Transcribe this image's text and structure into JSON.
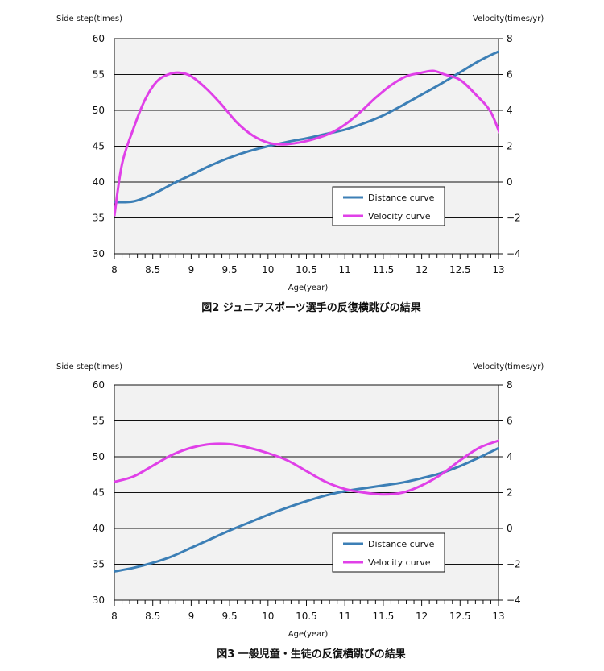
{
  "chart_data": [
    {
      "type": "line",
      "caption": "図2 ジュニアスポーツ選手の反復横跳びの結果",
      "xlabel": "Age(year)",
      "ylabel_left": "Side step(times)",
      "ylabel_right": "Velocity(times/yr)",
      "xlim": [
        8,
        13
      ],
      "x_ticks": [
        "8",
        "8.5",
        "9",
        "9.5",
        "10",
        "10.5",
        "11",
        "11.5",
        "12",
        "12.5",
        "13"
      ],
      "ylim_left": [
        30,
        60
      ],
      "y_ticks_left": [
        "30",
        "35",
        "40",
        "45",
        "50",
        "55",
        "60"
      ],
      "ylim_right": [
        -4,
        8
      ],
      "y_ticks_right": [
        "−4",
        "−2",
        "0",
        "2",
        "4",
        "6",
        "8"
      ],
      "legend": {
        "placement": "lower-right",
        "entries": [
          "Distance curve",
          "Velocity curve"
        ]
      },
      "series": [
        {
          "name": "Distance curve",
          "axis": "left",
          "color": "#3c7fb6",
          "x": [
            8.0,
            8.25,
            8.5,
            8.75,
            9.0,
            9.25,
            9.5,
            9.75,
            10.0,
            10.25,
            10.5,
            10.75,
            11.0,
            11.25,
            11.5,
            11.75,
            12.0,
            12.25,
            12.5,
            12.75,
            13.0,
            13.05
          ],
          "y": [
            37.2,
            37.3,
            38.3,
            39.7,
            41.0,
            42.3,
            43.4,
            44.3,
            45.0,
            45.6,
            46.1,
            46.7,
            47.3,
            48.2,
            49.3,
            50.7,
            52.2,
            53.7,
            55.3,
            56.9,
            58.2,
            58.3
          ]
        },
        {
          "name": "Velocity curve",
          "axis": "right",
          "color": "#e040e8",
          "x": [
            8.0,
            8.1,
            8.25,
            8.4,
            8.55,
            8.7,
            8.85,
            9.0,
            9.2,
            9.4,
            9.6,
            9.8,
            10.0,
            10.2,
            10.4,
            10.6,
            10.8,
            11.0,
            11.2,
            11.4,
            11.6,
            11.8,
            12.0,
            12.15,
            12.3,
            12.5,
            12.7,
            12.9,
            13.05
          ],
          "y": [
            -1.9,
            1.0,
            3.0,
            4.6,
            5.6,
            6.0,
            6.1,
            5.9,
            5.2,
            4.3,
            3.3,
            2.6,
            2.2,
            2.1,
            2.2,
            2.4,
            2.7,
            3.2,
            3.9,
            4.7,
            5.4,
            5.9,
            6.1,
            6.2,
            6.0,
            5.7,
            4.9,
            3.9,
            2.3
          ]
        }
      ]
    },
    {
      "type": "line",
      "caption": "図3 一般児童・生徒の反復横跳びの結果",
      "xlabel": "Age(year)",
      "ylabel_left": "Side step(times)",
      "ylabel_right": "Velocity(times/yr)",
      "xlim": [
        8,
        13
      ],
      "x_ticks": [
        "8",
        "8.5",
        "9",
        "9.5",
        "10",
        "10.5",
        "11",
        "11.5",
        "12",
        "12.5",
        "13"
      ],
      "ylim_left": [
        30,
        60
      ],
      "y_ticks_left": [
        "30",
        "35",
        "40",
        "45",
        "50",
        "55",
        "60"
      ],
      "ylim_right": [
        -4,
        8
      ],
      "y_ticks_right": [
        "−4",
        "−2",
        "0",
        "2",
        "4",
        "6",
        "8"
      ],
      "legend": {
        "placement": "lower-right",
        "entries": [
          "Distance curve",
          "Velocity curve"
        ]
      },
      "series": [
        {
          "name": "Distance curve",
          "axis": "left",
          "color": "#3c7fb6",
          "x": [
            8.0,
            8.25,
            8.5,
            8.75,
            9.0,
            9.25,
            9.5,
            9.75,
            10.0,
            10.25,
            10.5,
            10.75,
            11.0,
            11.25,
            11.5,
            11.75,
            12.0,
            12.25,
            12.5,
            12.75,
            13.0,
            13.05
          ],
          "y": [
            34.0,
            34.5,
            35.2,
            36.1,
            37.3,
            38.5,
            39.7,
            40.8,
            41.9,
            42.9,
            43.8,
            44.6,
            45.2,
            45.6,
            46.0,
            46.4,
            47.0,
            47.7,
            48.7,
            49.9,
            51.2,
            51.4
          ]
        },
        {
          "name": "Velocity curve",
          "axis": "right",
          "color": "#e040e8",
          "x": [
            8.0,
            8.25,
            8.5,
            8.75,
            9.0,
            9.25,
            9.5,
            9.75,
            10.0,
            10.25,
            10.5,
            10.75,
            11.0,
            11.25,
            11.5,
            11.75,
            12.0,
            12.25,
            12.5,
            12.75,
            13.0,
            13.05
          ],
          "y": [
            2.6,
            2.9,
            3.5,
            4.1,
            4.5,
            4.7,
            4.7,
            4.5,
            4.2,
            3.8,
            3.2,
            2.6,
            2.2,
            2.0,
            1.9,
            2.0,
            2.4,
            3.0,
            3.8,
            4.5,
            4.9,
            5.0
          ]
        }
      ]
    }
  ]
}
